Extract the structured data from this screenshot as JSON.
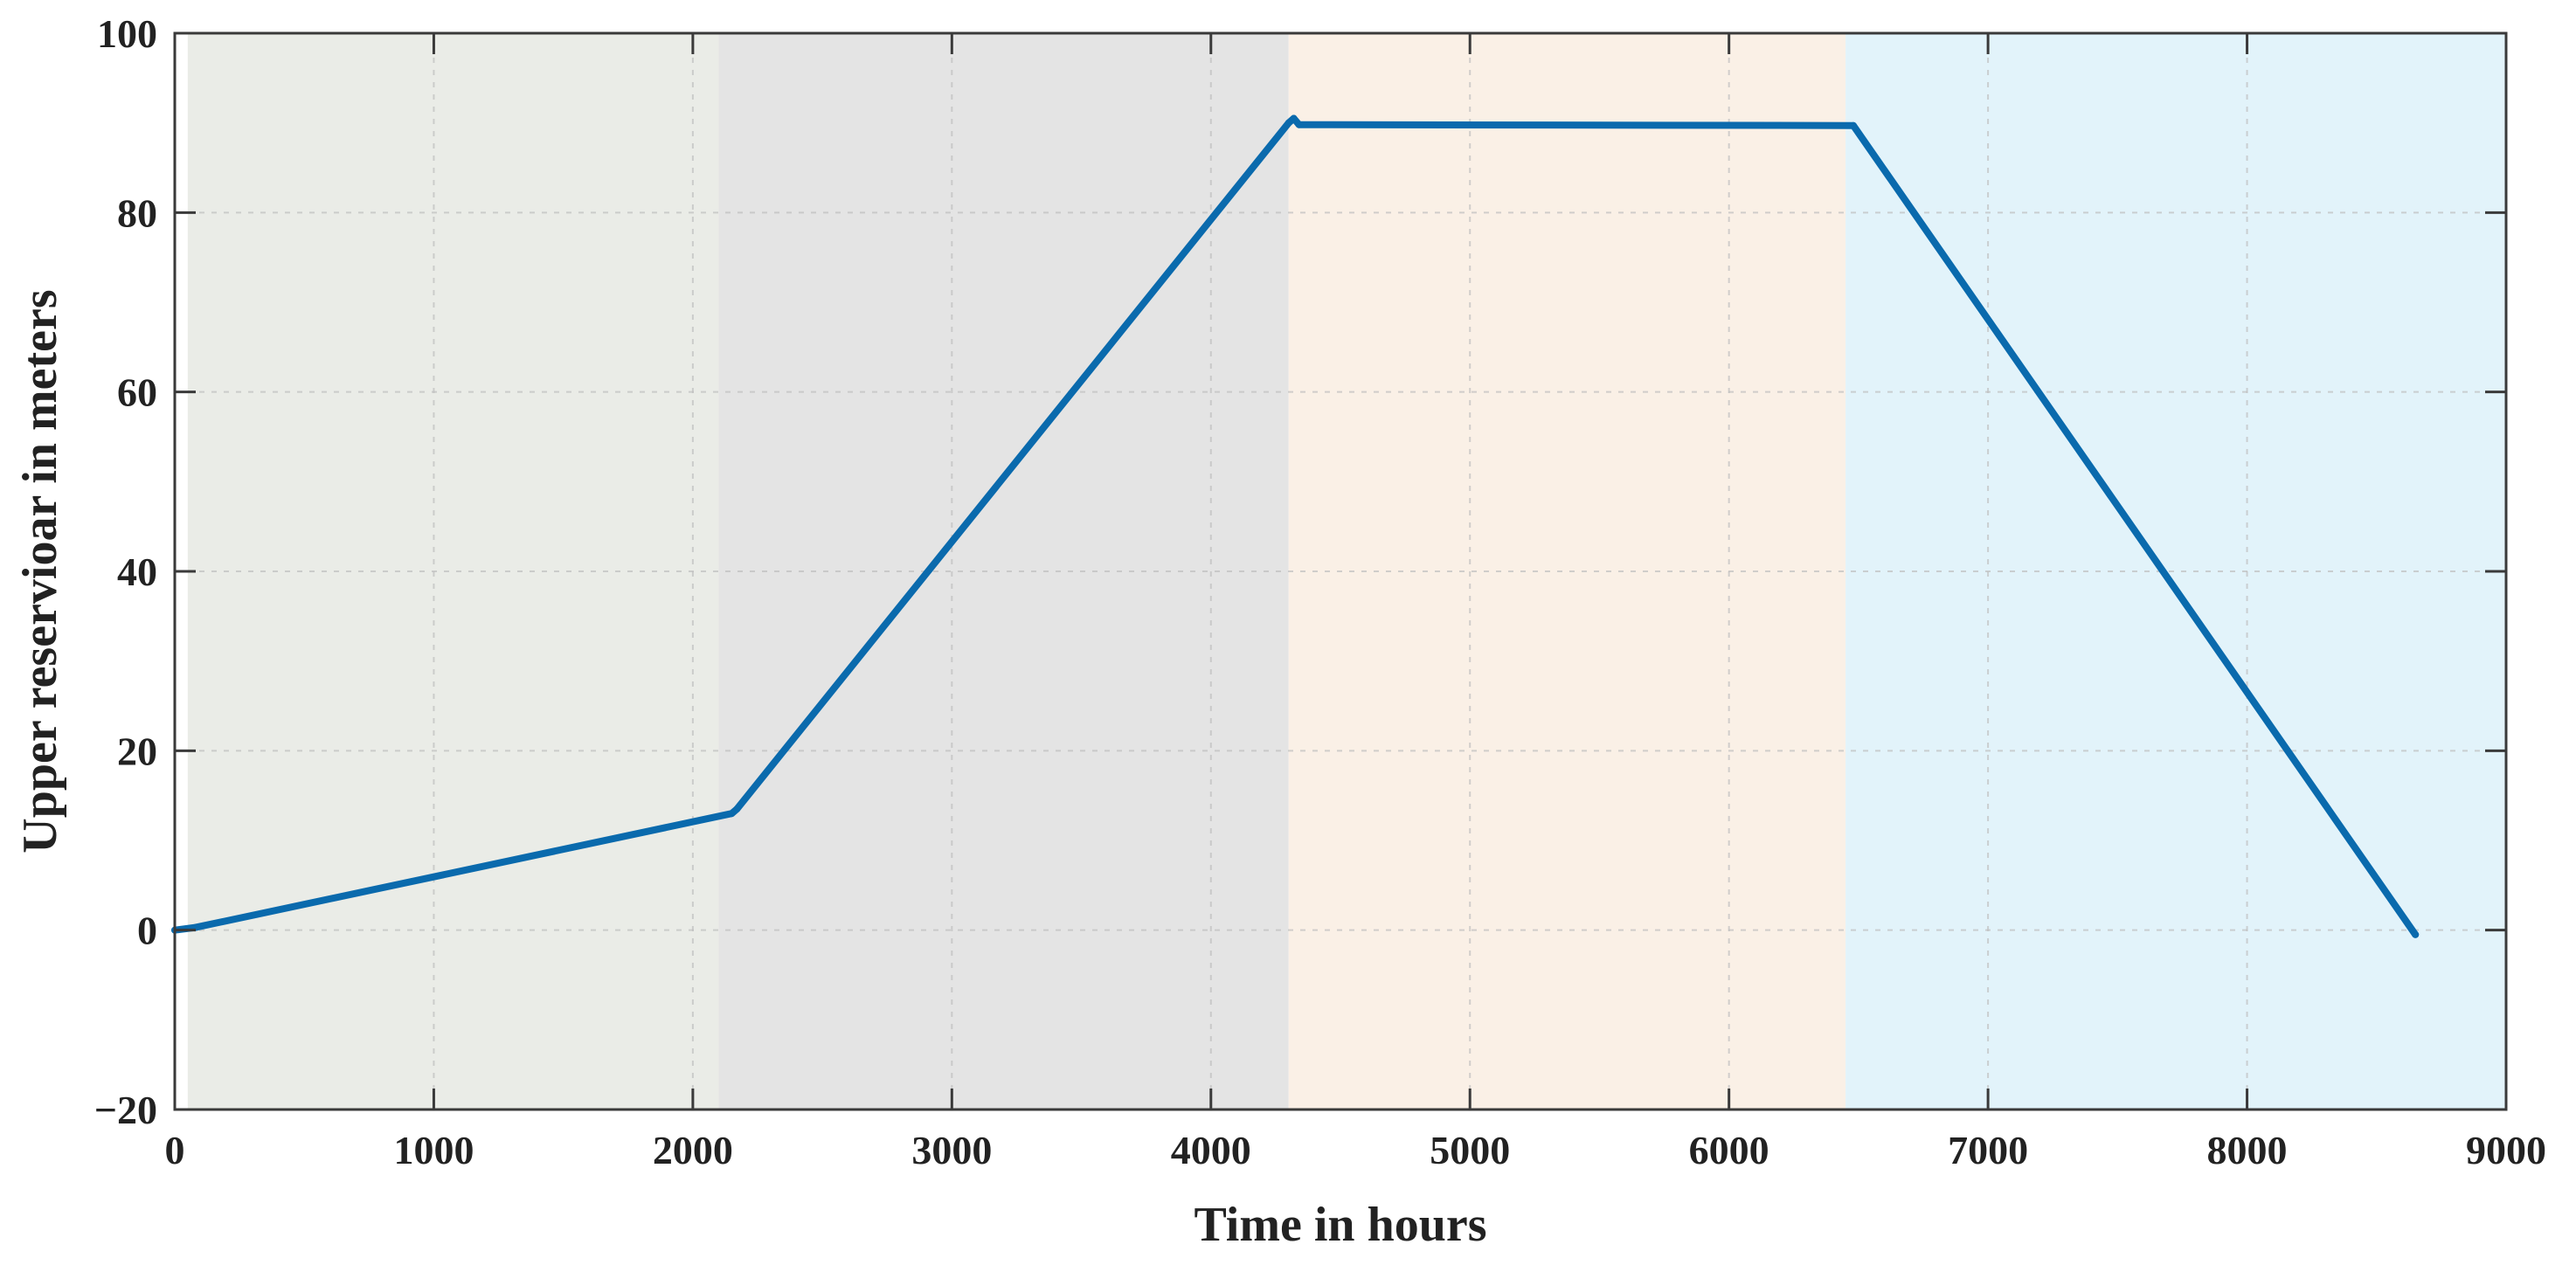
{
  "chart_data": {
    "type": "line",
    "title": "",
    "xlabel": "Time in hours",
    "ylabel": "Upper reservioar in meters",
    "xlim": [
      0,
      9000
    ],
    "ylim": [
      -20,
      100
    ],
    "xticks": [
      "0",
      "1000",
      "2000",
      "3000",
      "4000",
      "5000",
      "6000",
      "7000",
      "8000",
      "9000"
    ],
    "yticks": [
      "−20",
      "0",
      "20",
      "40",
      "60",
      "80",
      "100"
    ],
    "grid": true,
    "legend": "none",
    "shaded_regions": [
      {
        "x_start": 50,
        "x_end": 2100,
        "color": "#eaece7"
      },
      {
        "x_start": 2100,
        "x_end": 4300,
        "color": "#e4e4e4"
      },
      {
        "x_start": 4300,
        "x_end": 6450,
        "color": "#faf0e6"
      },
      {
        "x_start": 6450,
        "x_end": 9000,
        "color": "#e2f3fa"
      }
    ],
    "series": [
      {
        "color": "#0a6aad",
        "x": [
          0,
          80,
          2150,
          2170,
          4300,
          4320,
          4340,
          6480,
          8650
        ],
        "y": [
          0,
          0.3,
          13,
          13.5,
          90,
          90.5,
          89.8,
          89.7,
          -0.5
        ]
      }
    ]
  }
}
